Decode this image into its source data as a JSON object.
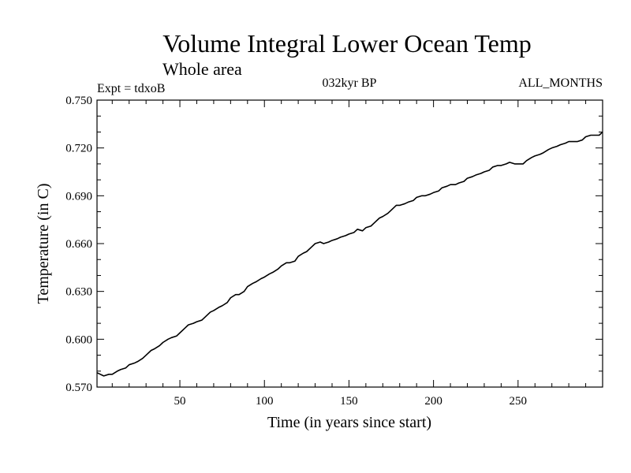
{
  "chart_data": {
    "type": "line",
    "title": "Volume Integral Lower Ocean Temp",
    "subtitle": "Whole area",
    "left_label": "Expt = tdxoB",
    "center_label": "032kyr BP",
    "right_label": "ALL_MONTHS",
    "xlabel": "Time (in years since start)",
    "ylabel": "Temperature (in C)",
    "xlim": [
      1,
      300
    ],
    "ylim": [
      0.57,
      0.75
    ],
    "x_ticks": [
      50,
      100,
      150,
      200,
      250
    ],
    "y_ticks": [
      "0.570",
      "0.600",
      "0.630",
      "0.660",
      "0.690",
      "0.720",
      "0.750"
    ],
    "grid": false,
    "series": [
      {
        "color": "#000000",
        "x": [
          1,
          3,
          5,
          8,
          10,
          13,
          15,
          18,
          20,
          23,
          25,
          28,
          30,
          33,
          35,
          38,
          40,
          43,
          45,
          48,
          50,
          53,
          55,
          58,
          60,
          63,
          65,
          68,
          70,
          73,
          75,
          78,
          80,
          83,
          85,
          88,
          90,
          93,
          95,
          98,
          100,
          103,
          105,
          108,
          110,
          113,
          115,
          118,
          120,
          123,
          125,
          128,
          130,
          133,
          135,
          138,
          140,
          143,
          145,
          148,
          150,
          153,
          155,
          158,
          160,
          163,
          165,
          168,
          170,
          173,
          175,
          178,
          180,
          183,
          185,
          188,
          190,
          193,
          195,
          198,
          200,
          203,
          205,
          208,
          210,
          213,
          215,
          218,
          220,
          223,
          225,
          228,
          230,
          233,
          235,
          238,
          240,
          243,
          245,
          248,
          250,
          253,
          255,
          258,
          260,
          263,
          265,
          268,
          270,
          273,
          275,
          278,
          280,
          283,
          285,
          288,
          290,
          293,
          295,
          298,
          300
        ],
        "y": [
          0.579,
          0.578,
          0.577,
          0.578,
          0.578,
          0.58,
          0.581,
          0.582,
          0.584,
          0.585,
          0.586,
          0.588,
          0.59,
          0.593,
          0.594,
          0.596,
          0.598,
          0.6,
          0.601,
          0.602,
          0.604,
          0.607,
          0.609,
          0.61,
          0.611,
          0.612,
          0.614,
          0.617,
          0.618,
          0.62,
          0.621,
          0.623,
          0.626,
          0.628,
          0.628,
          0.63,
          0.633,
          0.635,
          0.636,
          0.638,
          0.639,
          0.641,
          0.642,
          0.644,
          0.646,
          0.648,
          0.648,
          0.649,
          0.652,
          0.654,
          0.655,
          0.658,
          0.66,
          0.661,
          0.66,
          0.661,
          0.662,
          0.663,
          0.664,
          0.665,
          0.666,
          0.667,
          0.669,
          0.668,
          0.67,
          0.671,
          0.673,
          0.676,
          0.677,
          0.679,
          0.681,
          0.684,
          0.684,
          0.685,
          0.686,
          0.687,
          0.689,
          0.69,
          0.69,
          0.691,
          0.692,
          0.693,
          0.695,
          0.696,
          0.697,
          0.697,
          0.698,
          0.699,
          0.701,
          0.702,
          0.703,
          0.704,
          0.705,
          0.706,
          0.708,
          0.709,
          0.709,
          0.71,
          0.711,
          0.71,
          0.71,
          0.71,
          0.712,
          0.714,
          0.715,
          0.716,
          0.717,
          0.719,
          0.72,
          0.721,
          0.722,
          0.723,
          0.724,
          0.724,
          0.724,
          0.725,
          0.727,
          0.728,
          0.728,
          0.728,
          0.73
        ]
      }
    ]
  }
}
